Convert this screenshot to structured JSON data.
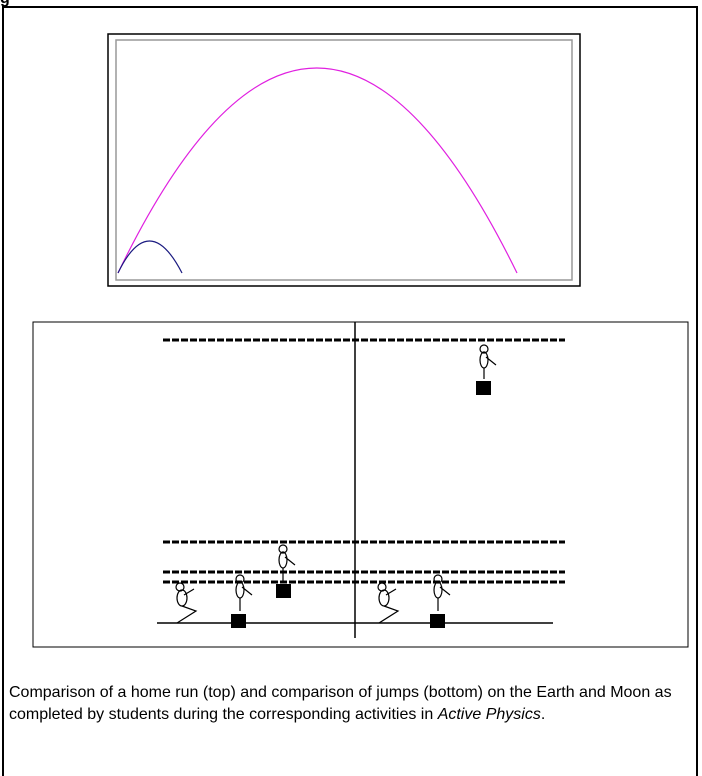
{
  "header": {
    "title": "g"
  },
  "caption": {
    "before": "Comparison of a home run (top) and comparison of jumps (bottom) on the Earth and Moon as completed by students during the corresponding activities in ",
    "emphasis": "Active Physics",
    "after": "."
  }
}
